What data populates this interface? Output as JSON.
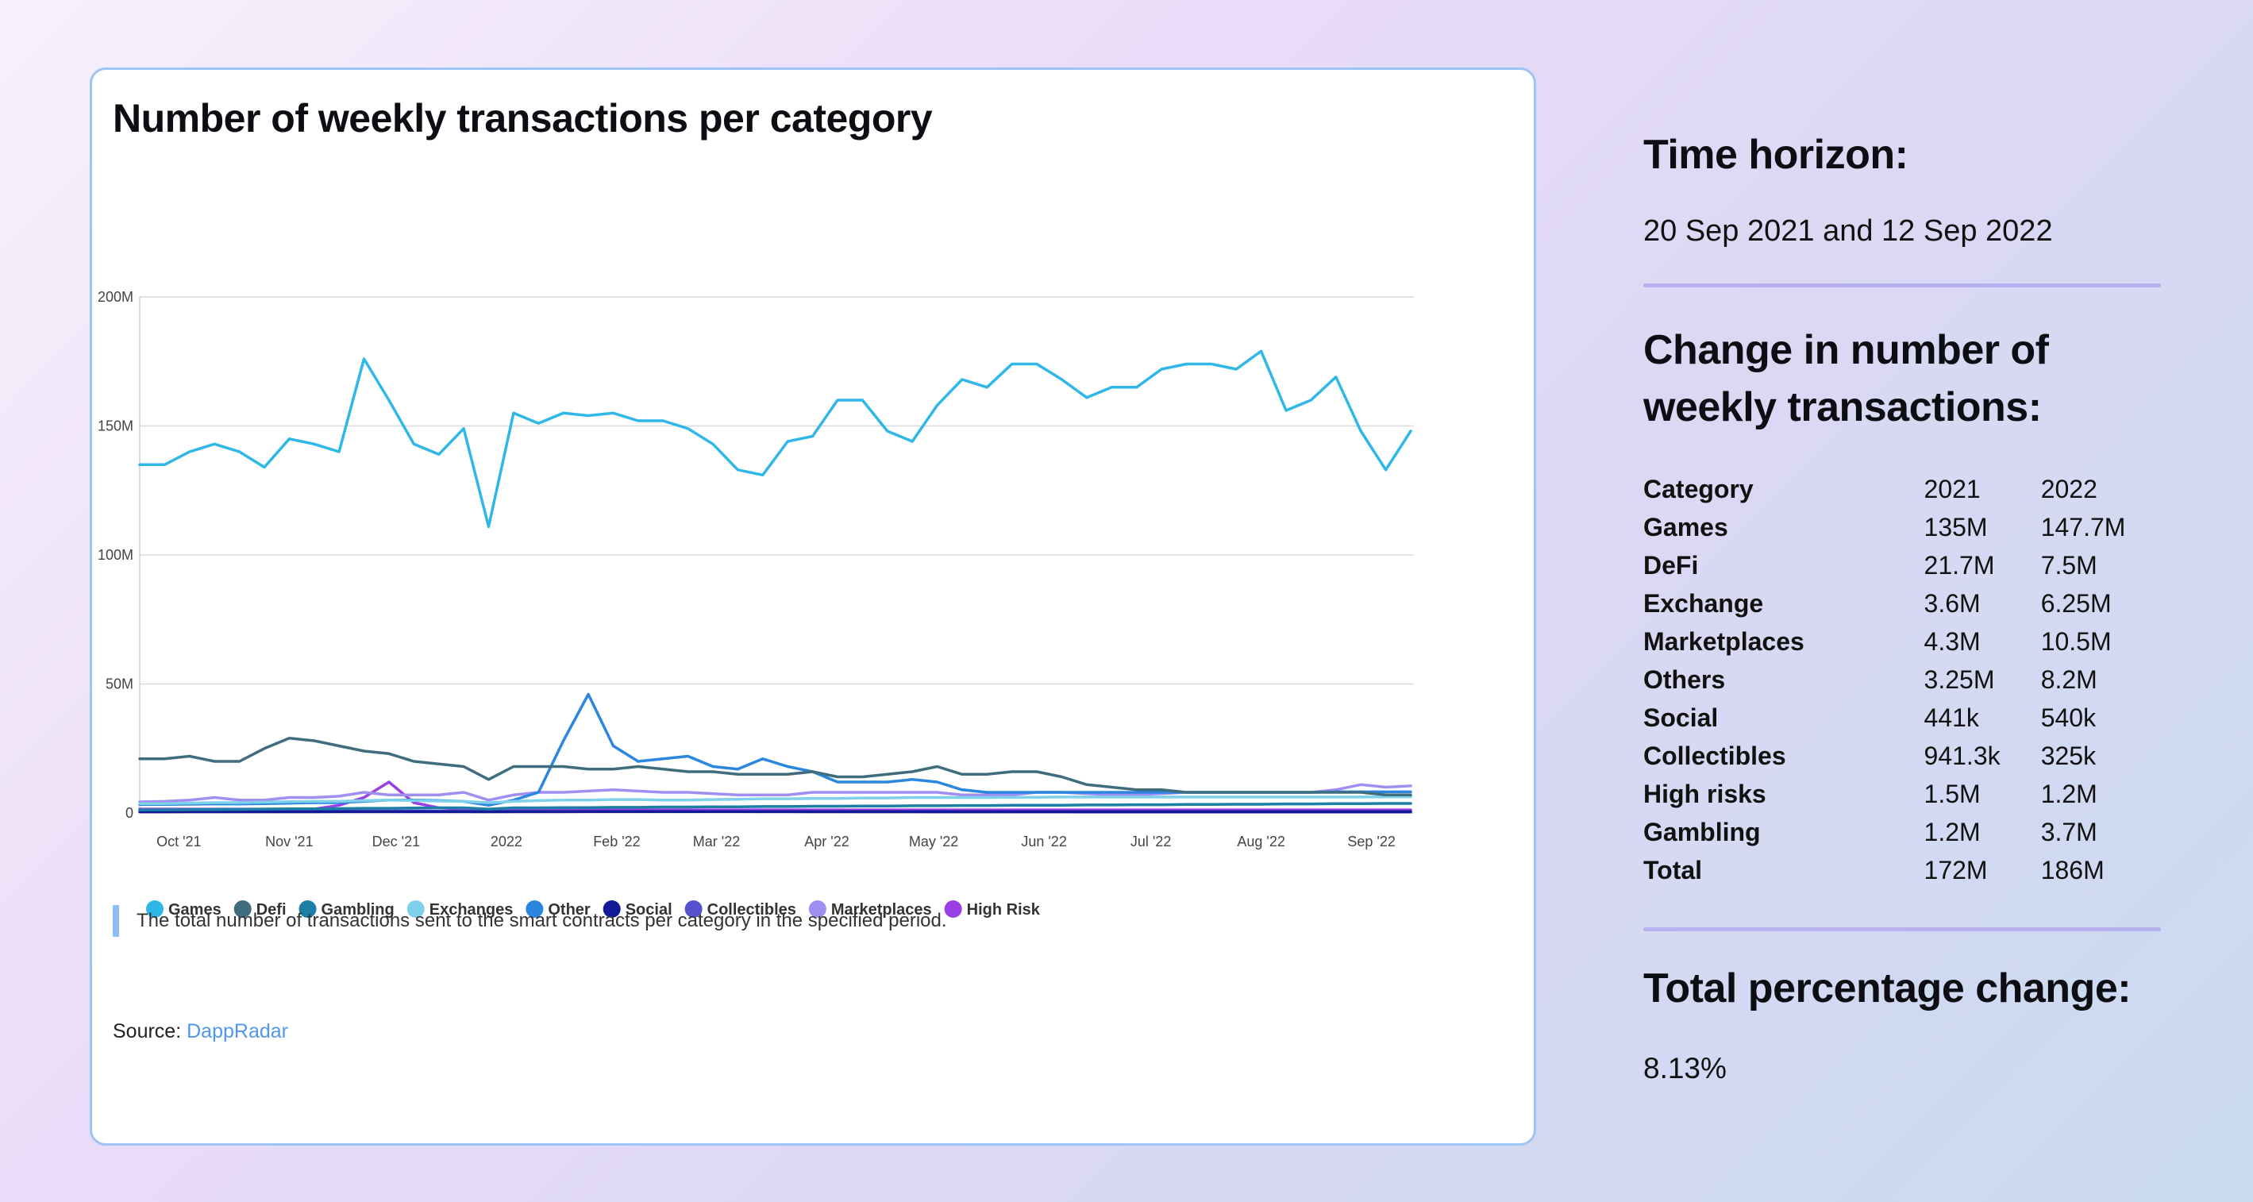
{
  "chart_data": {
    "type": "line",
    "title": "Number of weekly transactions per category",
    "y_ticks": [
      "0",
      "50M",
      "100M",
      "150M",
      "200M"
    ],
    "x_ticks": [
      "Oct '21",
      "Nov '21",
      "Dec '21",
      "2022",
      "Feb '22",
      "Mar '22",
      "Apr '22",
      "May '22",
      "Jun '22",
      "Jul '22",
      "Aug '22",
      "Sep '22"
    ],
    "x_start": "2021-09-20",
    "weeks": 52,
    "ylim": [
      0,
      200
    ],
    "y_unit": "M",
    "grid": true,
    "legend_position": "bottom",
    "series": [
      {
        "name": "Games",
        "color": "#2fb7e8",
        "values": [
          135,
          135,
          140,
          143,
          140,
          134,
          145,
          143,
          140,
          176,
          160,
          143,
          139,
          149,
          111,
          155,
          151,
          155,
          154,
          155,
          152,
          152,
          149,
          143,
          133,
          131,
          144,
          146,
          160,
          160,
          148,
          144,
          158,
          168,
          165,
          174,
          174,
          168,
          161,
          165,
          165,
          172,
          174,
          174,
          172,
          179,
          156,
          160,
          169,
          148,
          133,
          148
        ]
      },
      {
        "name": "Defi",
        "color": "#3f6d7d",
        "values": [
          21,
          21,
          22,
          20,
          20,
          25,
          29,
          28,
          26,
          24,
          23,
          20,
          19,
          18,
          13,
          18,
          18,
          18,
          17,
          17,
          18,
          17,
          16,
          16,
          15,
          15,
          15,
          16,
          14,
          14,
          15,
          16,
          18,
          15,
          15,
          16,
          16,
          14,
          11,
          10,
          9,
          9,
          8,
          8,
          8,
          8,
          8,
          8,
          8,
          8,
          7,
          7
        ]
      },
      {
        "name": "Gambling",
        "color": "#1d7ea6",
        "values": [
          1.2,
          1.2,
          1.3,
          1.3,
          1.4,
          1.5,
          1.6,
          1.6,
          1.7,
          1.8,
          1.8,
          1.9,
          2,
          2,
          1.5,
          2,
          2,
          2.1,
          2.1,
          2.2,
          2.2,
          2.3,
          2.3,
          2.4,
          2.4,
          2.5,
          2.5,
          2.6,
          2.6,
          2.7,
          2.7,
          2.8,
          2.8,
          2.9,
          2.9,
          3,
          3,
          3,
          3.1,
          3.1,
          3.2,
          3.2,
          3.3,
          3.3,
          3.4,
          3.4,
          3.5,
          3.5,
          3.6,
          3.6,
          3.7,
          3.7
        ]
      },
      {
        "name": "Exchanges",
        "color": "#7fd0ea",
        "values": [
          3.6,
          3.6,
          3.8,
          4,
          4,
          4.2,
          4.4,
          4.5,
          4.5,
          4.8,
          5,
          4.8,
          4.6,
          4.5,
          4,
          4.5,
          4.8,
          5,
          5,
          5.2,
          5.2,
          5,
          5,
          5.2,
          5.3,
          5.5,
          5.5,
          5.6,
          5.6,
          5.8,
          5.8,
          6,
          6,
          6,
          6,
          6.1,
          6.1,
          6.2,
          6.2,
          6.2,
          6.2,
          6.2,
          6.2,
          6.2,
          6.2,
          6.2,
          6.2,
          6.2,
          6.2,
          6.2,
          6.25,
          6.25
        ]
      },
      {
        "name": "Other",
        "color": "#2b86e0",
        "values": [
          3.25,
          3.3,
          3.4,
          3.5,
          3.5,
          3.6,
          3.8,
          4,
          4,
          4.5,
          5,
          5,
          4.8,
          4.5,
          3,
          5,
          8,
          28,
          46,
          26,
          20,
          21,
          22,
          18,
          17,
          21,
          18,
          16,
          12,
          12,
          12,
          13,
          12,
          9,
          8,
          8,
          8,
          8,
          8,
          8,
          8,
          8,
          8,
          8,
          8,
          8,
          8,
          8,
          8.2,
          8.2,
          8.2,
          8.2
        ]
      },
      {
        "name": "Social",
        "color": "#101a96",
        "values": [
          0.44,
          0.44,
          0.45,
          0.45,
          0.46,
          0.46,
          0.47,
          0.47,
          0.48,
          0.48,
          0.49,
          0.49,
          0.5,
          0.5,
          0.45,
          0.5,
          0.5,
          0.5,
          0.51,
          0.51,
          0.51,
          0.52,
          0.52,
          0.52,
          0.52,
          0.53,
          0.53,
          0.53,
          0.53,
          0.53,
          0.54,
          0.54,
          0.54,
          0.54,
          0.54,
          0.54,
          0.54,
          0.54,
          0.54,
          0.54,
          0.54,
          0.54,
          0.54,
          0.54,
          0.54,
          0.54,
          0.54,
          0.54,
          0.54,
          0.54,
          0.54,
          0.54
        ]
      },
      {
        "name": "Collectibles",
        "color": "#5652cf",
        "values": [
          0.94,
          0.94,
          0.9,
          0.9,
          0.88,
          0.86,
          0.85,
          0.84,
          0.82,
          0.8,
          0.78,
          0.76,
          0.74,
          0.72,
          0.6,
          0.7,
          0.68,
          0.66,
          0.64,
          0.62,
          0.6,
          0.58,
          0.56,
          0.54,
          0.52,
          0.5,
          0.48,
          0.46,
          0.45,
          0.44,
          0.43,
          0.42,
          0.41,
          0.4,
          0.39,
          0.38,
          0.37,
          0.36,
          0.35,
          0.35,
          0.34,
          0.34,
          0.34,
          0.33,
          0.33,
          0.33,
          0.33,
          0.33,
          0.33,
          0.33,
          0.325,
          0.325
        ]
      },
      {
        "name": "Marketplaces",
        "color": "#a08ff0",
        "values": [
          4.3,
          4.5,
          5,
          6,
          5,
          5,
          6,
          6,
          6.5,
          8,
          7,
          7,
          7,
          8,
          5,
          7,
          8,
          8,
          8.5,
          9,
          8.5,
          8,
          8,
          7.5,
          7,
          7,
          7,
          8,
          8,
          8,
          8,
          8,
          8,
          7,
          7,
          7,
          8,
          8,
          7.5,
          7,
          7,
          7.5,
          8,
          8,
          8,
          8,
          8,
          8,
          9,
          11,
          10,
          10.5
        ]
      },
      {
        "name": "High Risk",
        "color": "#9a3fe6",
        "values": [
          1.5,
          1.5,
          1.5,
          1.5,
          1.5,
          1.5,
          1.5,
          1.5,
          3,
          6,
          12,
          4,
          2,
          1.5,
          1.2,
          1.2,
          1.2,
          1.2,
          1.2,
          1.2,
          1.2,
          1.2,
          1.2,
          1.2,
          1.2,
          1.2,
          1.2,
          1.2,
          1.2,
          1.2,
          1.2,
          1.2,
          1.2,
          1.2,
          1.2,
          1.2,
          1.2,
          1.2,
          1.2,
          1.2,
          1.2,
          1.2,
          1.2,
          1.2,
          1.2,
          1.2,
          1.2,
          1.2,
          1.2,
          1.2,
          1.2,
          1.2
        ]
      }
    ]
  },
  "note": "The total number of transactions sent to the smart contracts per category in the specified period.",
  "source_label": "Source:",
  "source_link": "DappRadar",
  "time_horizon": {
    "heading": "Time horizon:",
    "value": "20 Sep 2021 and 12 Sep 2022"
  },
  "change": {
    "heading": "Change in number of weekly transactions:",
    "columns": [
      "Category",
      "2021",
      "2022"
    ],
    "rows": [
      [
        "Games",
        "135M",
        "147.7M"
      ],
      [
        "DeFi",
        "21.7M",
        "7.5M"
      ],
      [
        "Exchange",
        "3.6M",
        "6.25M"
      ],
      [
        "Marketplaces",
        "4.3M",
        "10.5M"
      ],
      [
        "Others",
        "3.25M",
        "8.2M"
      ],
      [
        "Social",
        "441k",
        "540k"
      ],
      [
        "Collectibles",
        "941.3k",
        "325k"
      ],
      [
        "High risks",
        "1.5M",
        "1.2M"
      ],
      [
        "Gambling",
        "1.2M",
        "3.7M"
      ],
      [
        "Total",
        "172M",
        "186M"
      ]
    ]
  },
  "total_change": {
    "heading": "Total percentage change:",
    "value": "8.13%"
  }
}
